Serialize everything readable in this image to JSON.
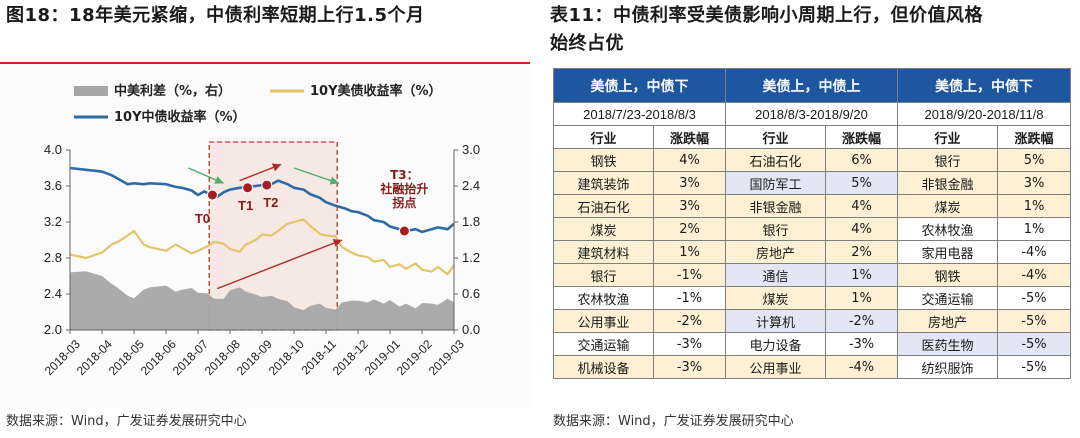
{
  "left_panel": {
    "title": "图18：18年美元紧缩，中债利率短期上行1.5个月",
    "source": "数据来源：Wind，广发证券发展研究中心"
  },
  "right_panel": {
    "title_line1": "表11：中债利率受美债影响小周期上行，但价值风格",
    "title_line2": "始终占优",
    "source": "数据来源：Wind，广发证券发展研究中心",
    "groups": [
      {
        "header": "美债上，中债下",
        "period": "2018/7/23-2018/8/3"
      },
      {
        "header": "美债上，中债上",
        "period": "2018/8/3-2018/9/20"
      },
      {
        "header": "美债上，中债下",
        "period": "2018/9/20-2018/11/8"
      }
    ],
    "col_headers": {
      "industry": "行业",
      "change": "涨跌幅"
    },
    "rows": [
      {
        "cells": [
          "钢铁",
          "4%",
          "石油石化",
          "6%",
          "银行",
          "5%"
        ],
        "hl": [
          "y",
          "y",
          "y",
          "y",
          "y",
          "y"
        ]
      },
      {
        "cells": [
          "建筑装饰",
          "3%",
          "国防军工",
          "5%",
          "非银金融",
          "3%"
        ],
        "hl": [
          "y",
          "y",
          "b",
          "b",
          "y",
          "y"
        ]
      },
      {
        "cells": [
          "石油石化",
          "3%",
          "非银金融",
          "4%",
          "煤炭",
          "1%"
        ],
        "hl": [
          "y",
          "y",
          "y",
          "y",
          "y",
          "y"
        ]
      },
      {
        "cells": [
          "煤炭",
          "2%",
          "银行",
          "4%",
          "农林牧渔",
          "1%"
        ],
        "hl": [
          "y",
          "y",
          "y",
          "y",
          "",
          ""
        ]
      },
      {
        "cells": [
          "建筑材料",
          "1%",
          "房地产",
          "2%",
          "家用电器",
          "-4%"
        ],
        "hl": [
          "y",
          "y",
          "y",
          "y",
          "",
          ""
        ]
      },
      {
        "cells": [
          "银行",
          "-1%",
          "通信",
          "1%",
          "钢铁",
          "-4%"
        ],
        "hl": [
          "y",
          "y",
          "b",
          "b",
          "y",
          "y"
        ]
      },
      {
        "cells": [
          "农林牧渔",
          "-1%",
          "煤炭",
          "1%",
          "交通运输",
          "-5%"
        ],
        "hl": [
          "",
          "",
          "y",
          "y",
          "",
          ""
        ]
      },
      {
        "cells": [
          "公用事业",
          "-2%",
          "计算机",
          "-2%",
          "房地产",
          "-5%"
        ],
        "hl": [
          "y",
          "y",
          "b",
          "b",
          "y",
          "y"
        ]
      },
      {
        "cells": [
          "交通运输",
          "-3%",
          "电力设备",
          "-3%",
          "医药生物",
          "-5%"
        ],
        "hl": [
          "",
          "",
          "",
          "",
          "b",
          "b"
        ]
      },
      {
        "cells": [
          "机械设备",
          "-3%",
          "公用事业",
          "-4%",
          "纺织服饰",
          "-5%"
        ],
        "hl": [
          "y",
          "y",
          "y",
          "y",
          "",
          ""
        ]
      }
    ]
  },
  "colors": {
    "cn10y": "#2f6aa6",
    "us10y": "#e3c46b",
    "spread": "#a6a6a6",
    "highlight_box": "#c0392b",
    "header_blue": "#1e56a0",
    "row_yellow": "#fdf0d3",
    "row_blue": "#e3e6f5"
  },
  "chart_data": {
    "type": "area+line",
    "legend": [
      "中美利差（%，右）",
      "10Y美债收益率（%）",
      "10Y中债收益率（%）"
    ],
    "legend_position": "top",
    "x_ticks": [
      "2018-03",
      "2018-04",
      "2018-05",
      "2018-06",
      "2018-07",
      "2018-08",
      "2018-09",
      "2018-10",
      "2018-11",
      "2018-12",
      "2019-01",
      "2019-02",
      "2019-03"
    ],
    "y_left": {
      "min": 2.0,
      "max": 4.0,
      "ticks": [
        "2.0",
        "2.4",
        "2.8",
        "3.2",
        "3.6",
        "4.0"
      ]
    },
    "y_right": {
      "min": 0.0,
      "max": 3.0,
      "ticks": [
        "0.0",
        "0.6",
        "1.2",
        "1.8",
        "2.4",
        "3.0"
      ]
    },
    "series": [
      {
        "name": "10Y中债收益率（%）",
        "axis": "left",
        "x": [
          0,
          0.5,
          1,
          1.3,
          1.5,
          1.8,
          2,
          2.3,
          2.5,
          3,
          3.3,
          3.5,
          3.8,
          4,
          4.2,
          4.4,
          4.6,
          4.8,
          5,
          5.3,
          5.5,
          5.8,
          6,
          6.3,
          6.5,
          6.8,
          7,
          7.3,
          7.5,
          7.8,
          8,
          8.3,
          8.6,
          8.8,
          9,
          9.3,
          9.5,
          9.8,
          10,
          10.3,
          10.5,
          10.8,
          11,
          11.3,
          11.5,
          11.8,
          12
        ],
        "y": [
          3.8,
          3.78,
          3.76,
          3.72,
          3.68,
          3.62,
          3.63,
          3.62,
          3.63,
          3.62,
          3.59,
          3.58,
          3.55,
          3.5,
          3.54,
          3.5,
          3.48,
          3.53,
          3.56,
          3.58,
          3.59,
          3.6,
          3.61,
          3.62,
          3.66,
          3.62,
          3.58,
          3.56,
          3.51,
          3.47,
          3.42,
          3.38,
          3.35,
          3.32,
          3.31,
          3.27,
          3.22,
          3.2,
          3.15,
          3.12,
          3.1,
          3.12,
          3.09,
          3.12,
          3.14,
          3.12,
          3.18
        ]
      },
      {
        "name": "10Y美债收益率（%）",
        "axis": "left",
        "x": [
          0,
          0.5,
          1,
          1.3,
          1.5,
          1.8,
          2,
          2.3,
          2.5,
          3,
          3.3,
          3.5,
          3.8,
          4,
          4.3,
          4.5,
          4.8,
          5,
          5.3,
          5.5,
          5.8,
          6,
          6.3,
          6.5,
          6.8,
          7,
          7.3,
          7.5,
          7.8,
          8,
          8.3,
          8.5,
          8.8,
          9,
          9.3,
          9.5,
          9.8,
          10,
          10.3,
          10.5,
          10.8,
          11,
          11.3,
          11.5,
          11.8,
          12
        ],
        "y": [
          2.84,
          2.8,
          2.86,
          2.95,
          2.98,
          3.05,
          3.1,
          2.95,
          2.92,
          2.88,
          2.95,
          2.91,
          2.85,
          2.88,
          2.93,
          2.98,
          2.96,
          2.9,
          2.87,
          2.95,
          3.0,
          3.06,
          3.05,
          3.1,
          3.18,
          3.2,
          3.23,
          3.16,
          3.07,
          3.05,
          3.04,
          2.92,
          2.86,
          2.83,
          2.81,
          2.76,
          2.78,
          2.7,
          2.73,
          2.68,
          2.74,
          2.67,
          2.65,
          2.7,
          2.62,
          2.72
        ]
      },
      {
        "name": "中美利差（%，右）",
        "axis": "right",
        "x": [
          0,
          0.5,
          1,
          1.3,
          1.5,
          1.8,
          2,
          2.3,
          2.5,
          3,
          3.3,
          3.5,
          3.8,
          4,
          4.3,
          4.5,
          4.8,
          5,
          5.3,
          5.5,
          5.8,
          6,
          6.3,
          6.5,
          6.8,
          7,
          7.3,
          7.5,
          7.8,
          8,
          8.3,
          8.5,
          8.8,
          9,
          9.3,
          9.5,
          9.8,
          10,
          10.3,
          10.5,
          10.8,
          11,
          11.3,
          11.5,
          11.8,
          12
        ],
        "y": [
          0.96,
          0.98,
          0.9,
          0.77,
          0.7,
          0.57,
          0.53,
          0.67,
          0.71,
          0.74,
          0.64,
          0.67,
          0.7,
          0.62,
          0.61,
          0.52,
          0.52,
          0.66,
          0.71,
          0.64,
          0.59,
          0.55,
          0.57,
          0.52,
          0.48,
          0.38,
          0.33,
          0.4,
          0.44,
          0.37,
          0.34,
          0.46,
          0.49,
          0.49,
          0.46,
          0.51,
          0.44,
          0.5,
          0.39,
          0.44,
          0.36,
          0.45,
          0.44,
          0.42,
          0.52,
          0.46
        ]
      }
    ],
    "highlight_range": {
      "from": 4.35,
      "to": 8.35
    },
    "markers": [
      {
        "label": "T0",
        "x": 4.45,
        "y": 3.5
      },
      {
        "label": "T1",
        "x": 5.55,
        "y": 3.58
      },
      {
        "label": "T2",
        "x": 6.15,
        "y": 3.61
      },
      {
        "label": "T3：社融抬升拐点",
        "x": 10.45,
        "y": 3.1
      }
    ]
  }
}
